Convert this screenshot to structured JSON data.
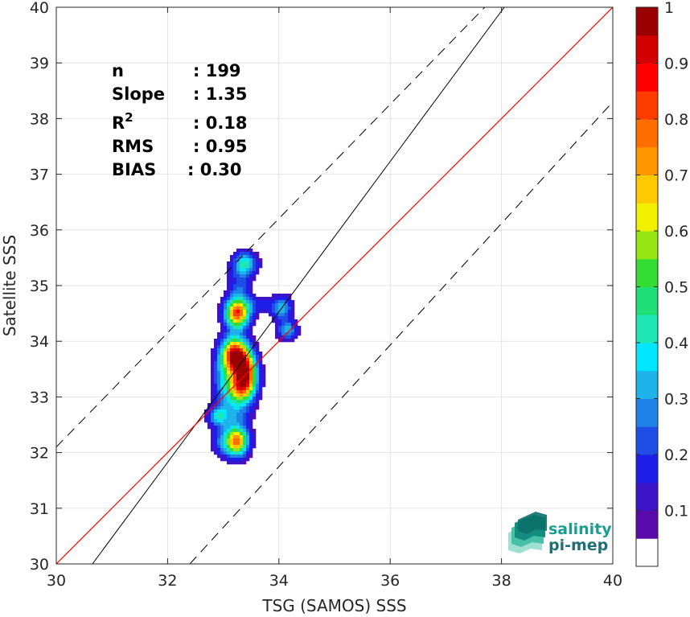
{
  "chart_data": {
    "type": "heatmap",
    "xlabel": "TSG (SAMOS) SSS",
    "ylabel": "Satellite SSS",
    "xlim": [
      30,
      40
    ],
    "ylim": [
      30,
      40
    ],
    "xticks": [
      30,
      32,
      34,
      36,
      38,
      40
    ],
    "yticks": [
      30,
      31,
      32,
      33,
      34,
      35,
      36,
      37,
      38,
      39,
      40
    ],
    "grid": true,
    "stats": [
      {
        "label": "n",
        "value": ": 199"
      },
      {
        "label": "Slope",
        "value": ": 1.35"
      },
      {
        "label": "R",
        "sup": "2",
        "value": ": 0.18"
      },
      {
        "label": "RMS",
        "value": ": 0.95"
      },
      {
        "label": "BIAS",
        "value": ": 0.30"
      }
    ],
    "reference_lines": {
      "identity": {
        "color": "#ff0000",
        "points": [
          [
            30,
            30
          ],
          [
            40,
            40
          ]
        ]
      },
      "regression": {
        "color": "#000000",
        "points": [
          [
            30.65,
            30
          ],
          [
            38.05,
            40
          ]
        ]
      },
      "upper_dashed": {
        "color": "#000000",
        "points": [
          [
            30,
            32.1
          ],
          [
            37.7,
            40
          ]
        ]
      },
      "lower_dashed": {
        "color": "#000000",
        "points": [
          [
            32.4,
            30
          ],
          [
            40,
            38.3
          ]
        ]
      }
    },
    "density_peaks": [
      {
        "x": 33.4,
        "y": 35.4,
        "sx": 0.14,
        "sy": 0.14,
        "a": 0.35
      },
      {
        "x": 33.25,
        "y": 34.5,
        "sx": 0.15,
        "sy": 0.18,
        "a": 0.8
      },
      {
        "x": 33.2,
        "y": 33.75,
        "sx": 0.16,
        "sy": 0.22,
        "a": 0.92
      },
      {
        "x": 33.4,
        "y": 33.45,
        "sx": 0.14,
        "sy": 0.25,
        "a": 0.78
      },
      {
        "x": 33.3,
        "y": 33.15,
        "sx": 0.17,
        "sy": 0.2,
        "a": 0.55
      },
      {
        "x": 33.25,
        "y": 32.2,
        "sx": 0.14,
        "sy": 0.18,
        "a": 0.72
      },
      {
        "x": 33.0,
        "y": 32.2,
        "sx": 0.14,
        "sy": 0.18,
        "a": 0.2
      },
      {
        "x": 32.9,
        "y": 32.65,
        "sx": 0.12,
        "sy": 0.12,
        "a": 0.3
      },
      {
        "x": 33.0,
        "y": 33.3,
        "sx": 0.14,
        "sy": 0.3,
        "a": 0.22
      },
      {
        "x": 34.05,
        "y": 34.6,
        "sx": 0.13,
        "sy": 0.15,
        "a": 0.28
      },
      {
        "x": 34.15,
        "y": 34.2,
        "sx": 0.12,
        "sy": 0.12,
        "a": 0.3
      },
      {
        "x": 33.65,
        "y": 34.65,
        "sx": 0.2,
        "sy": 0.1,
        "a": 0.12
      },
      {
        "x": 33.3,
        "y": 35.0,
        "sx": 0.14,
        "sy": 0.3,
        "a": 0.18
      },
      {
        "x": 33.2,
        "y": 32.7,
        "sx": 0.2,
        "sy": 0.2,
        "a": 0.2
      }
    ],
    "colorbar": {
      "range": [
        0,
        1
      ],
      "ticks": [
        0.1,
        0.2,
        0.3,
        0.4,
        0.5,
        0.6,
        0.7,
        0.8,
        0.9,
        1
      ],
      "tick_labels": [
        "0.1",
        "0.2",
        "0.3",
        "0.4",
        "0.5",
        "0.6",
        "0.7",
        "0.8",
        "0.9",
        "1"
      ],
      "colors": [
        "#ffffff",
        "#5a0aa8",
        "#3c14c8",
        "#1e1eeb",
        "#1e4ee6",
        "#1e82e6",
        "#1eb4eb",
        "#00e6ff",
        "#1ee6b4",
        "#1ede78",
        "#32dc32",
        "#96e614",
        "#f0f000",
        "#ffc800",
        "#ff9600",
        "#ff6e00",
        "#ff3c00",
        "#ff0000",
        "#d20000",
        "#9a0000"
      ]
    }
  },
  "logo": {
    "line1": "salinity",
    "line2": "pi-mep"
  }
}
